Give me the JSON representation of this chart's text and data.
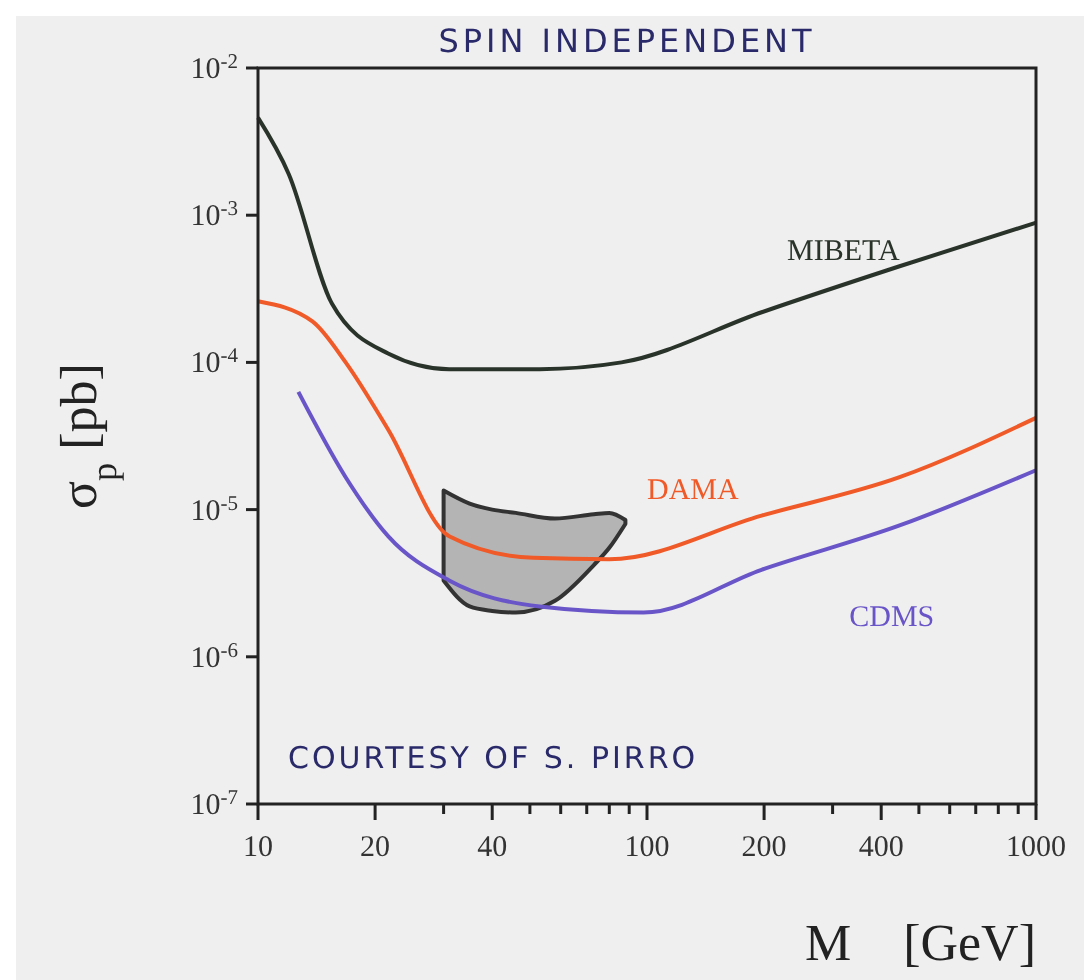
{
  "chart_data": {
    "type": "line",
    "title": "SPIN INDEPENDENT",
    "xlabel": "M    [GeV]",
    "ylabel": "σ$_{p}$ [pb]",
    "log": "xy",
    "grid": false,
    "marker": "none",
    "line_style": "solid",
    "xlim": [
      10,
      1000
    ],
    "ylim": [
      1e-07,
      0.01
    ],
    "xticks": [
      10,
      20,
      {
        "value": 30,
        "label": null
      },
      40,
      {
        "value": 50,
        "label": null
      },
      {
        "value": 60,
        "label": null
      },
      {
        "value": 70,
        "label": null
      },
      {
        "value": 80,
        "label": null
      },
      {
        "value": 90,
        "label": null
      },
      100,
      200,
      {
        "value": 300,
        "label": null
      },
      400,
      {
        "value": 500,
        "label": null
      },
      {
        "value": 600,
        "label": null
      },
      {
        "value": 700,
        "label": null
      },
      {
        "value": 800,
        "label": null
      },
      {
        "value": 900,
        "label": null
      },
      1000
    ],
    "yticks": [
      {
        "value": 1e-07,
        "label": "10$^{-7}$"
      },
      {
        "value": 1e-06,
        "label": "10$^{-6}$"
      },
      {
        "value": 1e-05,
        "label": "10$^{-5}$"
      },
      {
        "value": 0.0001,
        "label": "10$^{-4}$"
      },
      {
        "value": 0.001,
        "label": "10$^{-3}$"
      },
      {
        "value": 0.01,
        "label": "10$^{-2}$"
      }
    ],
    "series": [
      {
        "name": "MIBETA",
        "color": "#2a332a",
        "x": [
          10,
          12,
          15.5,
          21.6,
          31,
          53,
          86,
          198,
          446,
          1000
        ],
        "values": [
          0.0046,
          0.0019,
          0.00025,
          0.000115,
          9e-05,
          9e-05,
          0.0001,
          0.00022,
          0.00045,
          0.00089
        ]
      },
      {
        "name": "DAMA",
        "color": "#f05a28",
        "x": [
          10,
          13.8,
          16.8,
          21.6,
          31,
          51,
          80,
          197,
          446,
          1000
        ],
        "values": [
          0.00026,
          0.00019,
          0.0001,
          3.5e-05,
          6.6e-06,
          4.7e-06,
          4.6e-06,
          9.1e-06,
          1.66e-05,
          4.2e-05
        ]
      },
      {
        "name": "CDMS",
        "color": "#6a55c8",
        "x": [
          12.7,
          16.8,
          21.6,
          31,
          53,
          98,
          197,
          446,
          1000
        ],
        "values": [
          6.3e-05,
          1.66e-05,
          6.6e-06,
          3.3e-06,
          2.2e-06,
          2e-06,
          3.9e-06,
          7.8e-06,
          1.85e-05
        ]
      },
      {
        "type": "area",
        "color": "#b4b4b4",
        "x": [
          30,
          35,
          40,
          46,
          58,
          73,
          80,
          88
        ],
        "values": [
          null,
          null,
          null,
          null,
          null,
          null,
          null,
          null
        ],
        "upper": [
          1.35e-05,
          1.1e-05,
          1e-05,
          9.5e-06,
          8.7e-06,
          9.3e-06,
          9.5e-06,
          8.5e-06
        ],
        "lower": [
          3.3e-06,
          2.2e-06,
          2.05e-06,
          2e-06,
          2.4e-06,
          4.2e-06,
          5.5e-06,
          8e-06
        ]
      }
    ],
    "annotations": [
      "COURTESY OF S. PIRRO"
    ]
  }
}
